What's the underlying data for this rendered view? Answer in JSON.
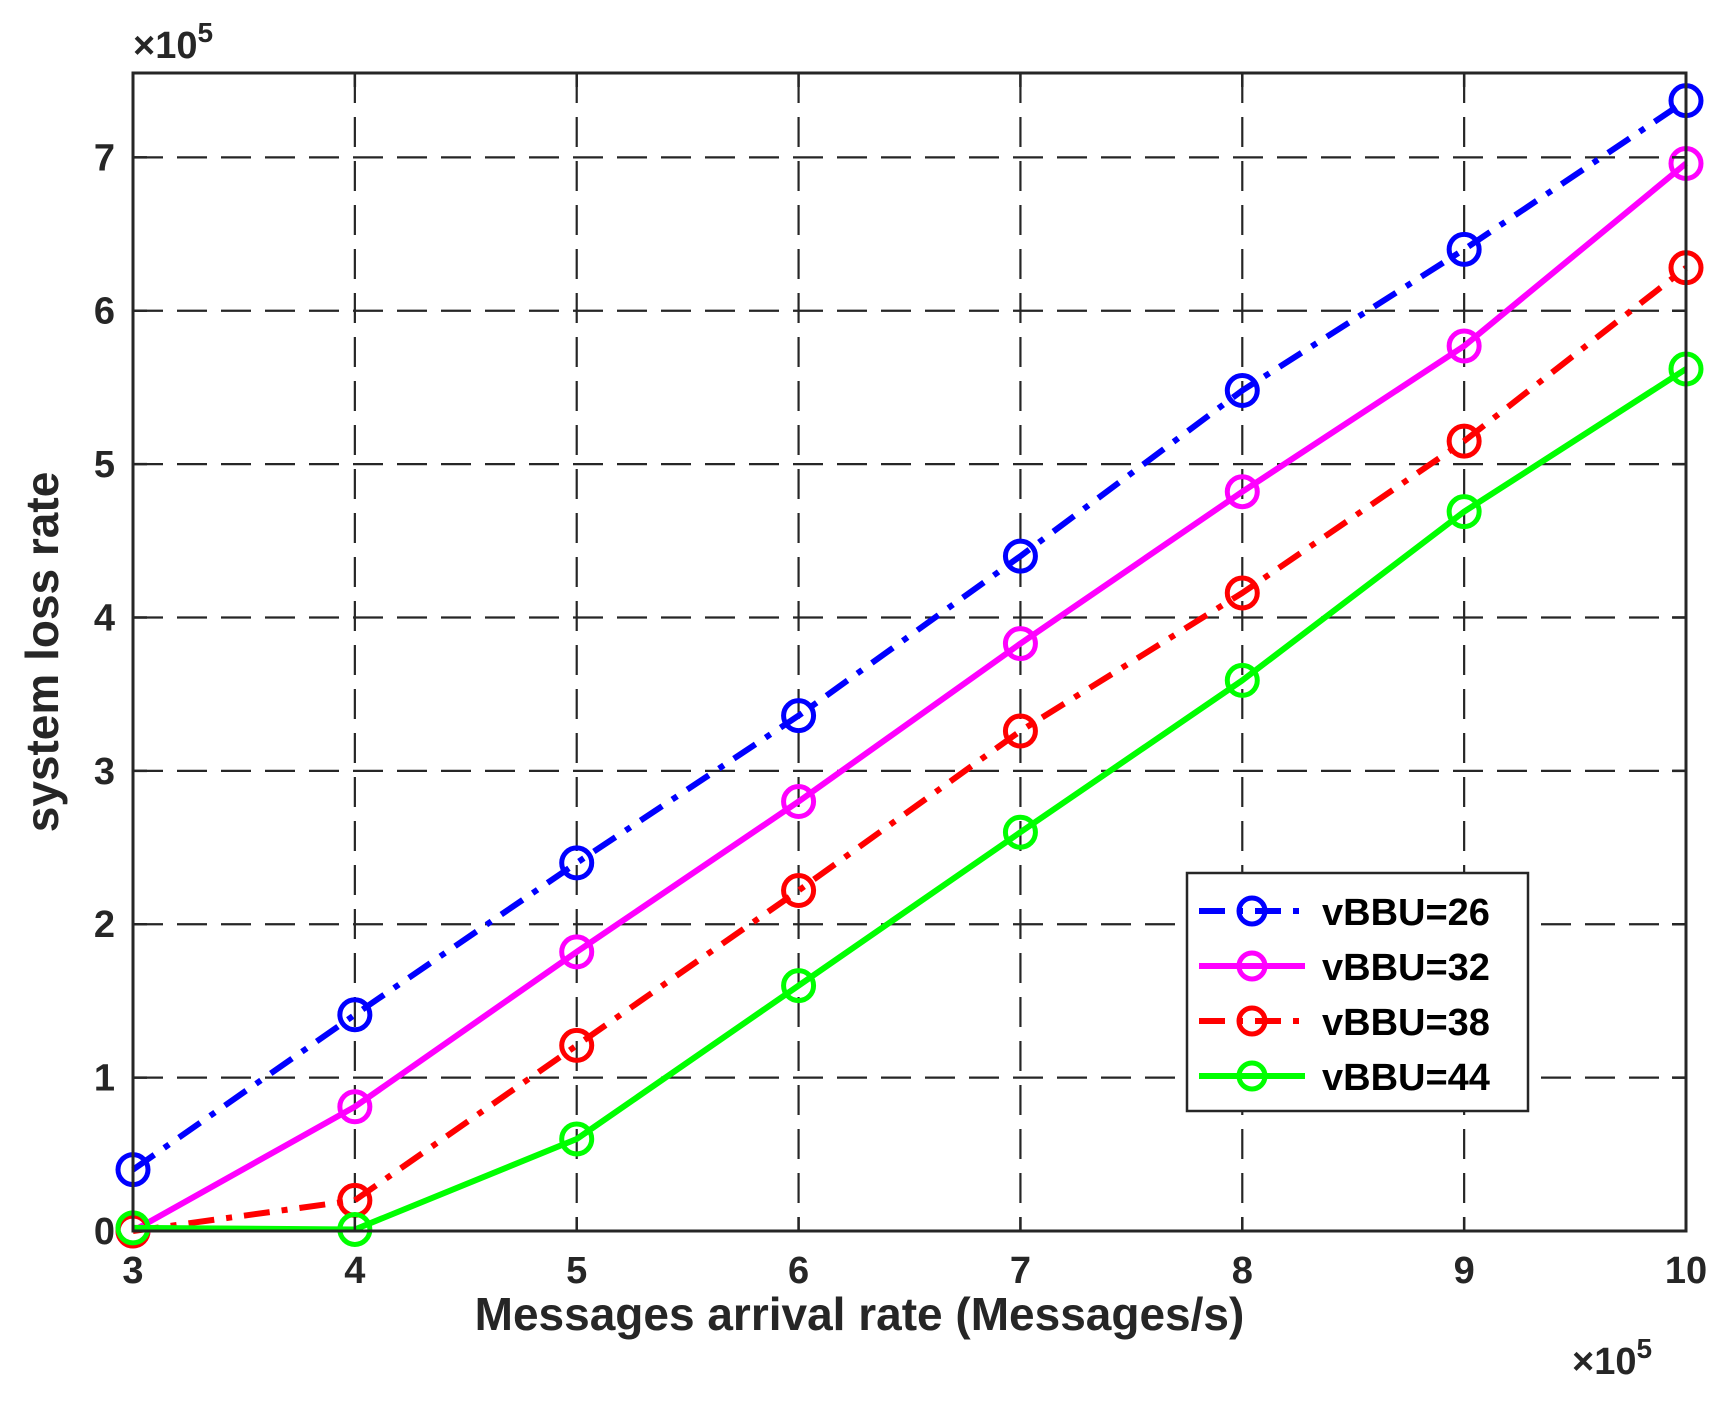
{
  "chart_data": {
    "type": "line",
    "title": "",
    "xlabel": "Messages arrival rate (Messages/s)",
    "ylabel": "system loss rate",
    "x_exponent_label": "×10",
    "x_exponent_power": "5",
    "y_exponent_label": "×10",
    "y_exponent_power": "5",
    "x_scale_note": "x values in units of 10^5",
    "x": [
      3,
      4,
      5,
      6,
      7,
      8,
      9,
      10
    ],
    "xlim": [
      3,
      10
    ],
    "ylim": [
      0,
      7.55
    ],
    "x_ticks": [
      "3",
      "4",
      "5",
      "6",
      "7",
      "8",
      "9",
      "10"
    ],
    "y_ticks": [
      "0",
      "1",
      "2",
      "3",
      "4",
      "5",
      "6",
      "7"
    ],
    "grid": true,
    "legend_position": "bottom-right",
    "series": [
      {
        "name": "vBBU=26",
        "color": "#0000ff",
        "dash": "dashdot",
        "values": [
          0.4,
          1.41,
          2.4,
          3.36,
          4.4,
          5.48,
          6.4,
          7.37
        ]
      },
      {
        "name": "vBBU=32",
        "color": "#ff00ff",
        "dash": "solid",
        "values": [
          0.0,
          0.81,
          1.82,
          2.8,
          3.83,
          4.82,
          5.77,
          6.96
        ]
      },
      {
        "name": "vBBU=38",
        "color": "#ff0000",
        "dash": "dashdot",
        "values": [
          0.0,
          0.2,
          1.21,
          2.22,
          3.26,
          4.16,
          5.15,
          6.28
        ]
      },
      {
        "name": "vBBU=44",
        "color": "#00ff00",
        "dash": "solid",
        "values": [
          0.02,
          0.01,
          0.6,
          1.6,
          2.6,
          3.59,
          4.69,
          5.62
        ]
      }
    ]
  }
}
